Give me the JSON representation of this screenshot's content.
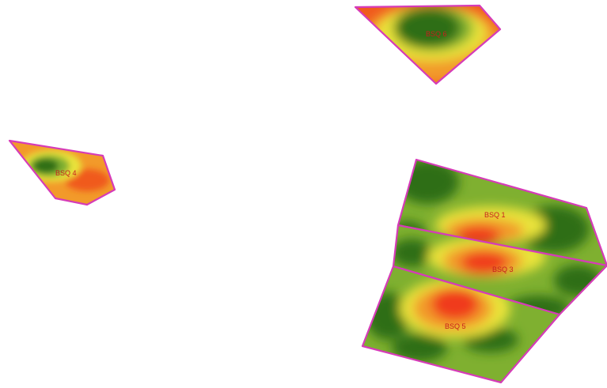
{
  "map": {
    "parcels": [
      {
        "id": "north",
        "label": "BSQ 6"
      },
      {
        "id": "west",
        "label": "BSQ 4"
      },
      {
        "id": "east-upper",
        "label": "BSQ 1"
      },
      {
        "id": "east-middle",
        "label": "BSQ 3"
      },
      {
        "id": "east-lower",
        "label": "BSQ 5"
      }
    ],
    "colors": {
      "boundary": "#d63bb8",
      "label": "#c81e1e",
      "high": "#2f6e12",
      "mid_high": "#7fb030",
      "mid": "#e9e33a",
      "mid_low": "#f29a2a",
      "low": "#f03a1e"
    }
  }
}
